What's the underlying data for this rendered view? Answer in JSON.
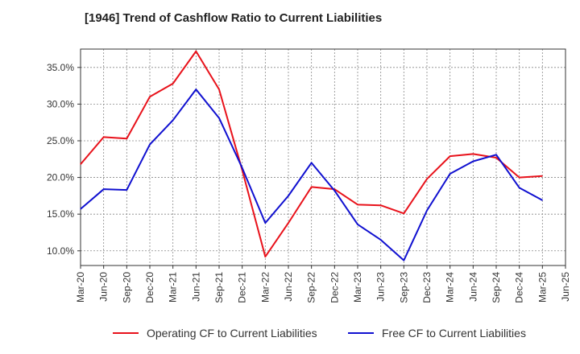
{
  "chart_data": {
    "type": "line",
    "title": "[1946]  Trend of Cashflow Ratio to Current Liabilities",
    "xlabel": "",
    "ylabel": "",
    "categories": [
      "Mar-20",
      "Jun-20",
      "Sep-20",
      "Dec-20",
      "Mar-21",
      "Jun-21",
      "Sep-21",
      "Dec-21",
      "Mar-22",
      "Jun-22",
      "Sep-22",
      "Dec-22",
      "Mar-23",
      "Jun-23",
      "Sep-23",
      "Dec-23",
      "Mar-24",
      "Jun-24",
      "Sep-24",
      "Dec-24",
      "Mar-25",
      "Jun-25"
    ],
    "ylim": [
      8.0,
      37.5
    ],
    "yticks": [
      10.0,
      15.0,
      20.0,
      25.0,
      30.0,
      35.0
    ],
    "ytick_labels": [
      "10.0%",
      "15.0%",
      "20.0%",
      "25.0%",
      "30.0%",
      "35.0%"
    ],
    "grid": true,
    "legend_position": "bottom",
    "series": [
      {
        "name": "Operating CF to Current Liabilities",
        "color": "#e8121b",
        "values": [
          21.8,
          25.5,
          25.3,
          31.0,
          32.8,
          37.2,
          32.0,
          21.0,
          9.2,
          13.8,
          18.7,
          18.4,
          16.3,
          16.2,
          15.1,
          19.8,
          22.9,
          23.2,
          22.7,
          20.0,
          20.2,
          null
        ]
      },
      {
        "name": "Free CF to Current Liabilities",
        "color": "#1010d0",
        "values": [
          15.7,
          18.4,
          18.3,
          24.5,
          27.8,
          32.0,
          28.1,
          21.3,
          13.8,
          17.5,
          22.0,
          18.2,
          13.6,
          11.5,
          8.7,
          15.5,
          20.5,
          22.2,
          23.1,
          18.6,
          16.9,
          null
        ]
      }
    ]
  }
}
